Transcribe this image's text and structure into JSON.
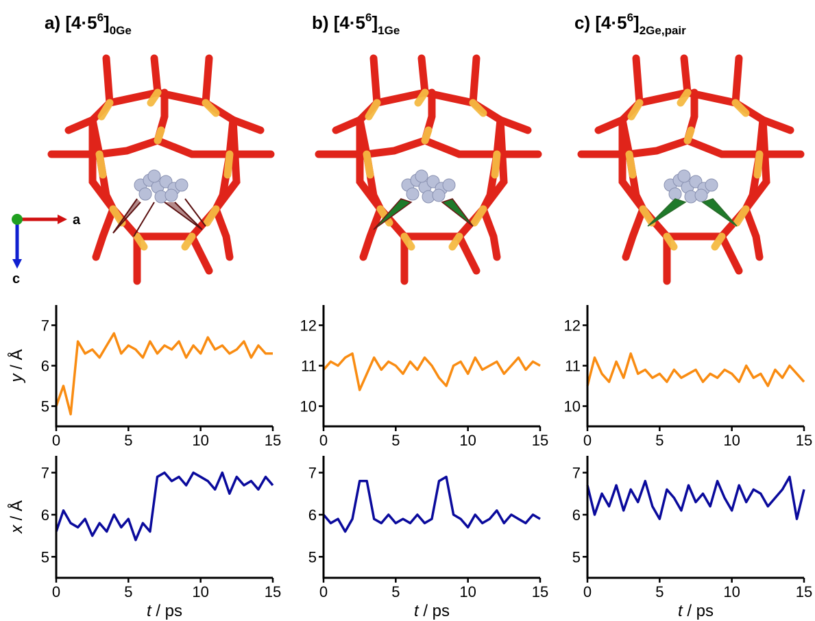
{
  "panels": [
    {
      "label": "a) [4·5",
      "sup": "6",
      "close": "]",
      "sub": "0Ge"
    },
    {
      "label": "b) [4·5",
      "sup": "6",
      "close": "]",
      "sub": "1Ge"
    },
    {
      "label": "c) [4·5",
      "sup": "6",
      "close": "]",
      "sub": "2Ge,pair"
    }
  ],
  "axis_labels": {
    "a": "a",
    "c": "c"
  },
  "chart_data": [
    {
      "type": "line",
      "x": [
        0,
        0.5,
        1,
        1.5,
        2,
        2.5,
        3,
        3.5,
        4,
        4.5,
        5,
        5.5,
        6,
        6.5,
        7,
        7.5,
        8,
        8.5,
        9,
        9.5,
        10,
        10.5,
        11,
        11.5,
        12,
        12.5,
        13,
        13.5,
        14,
        14.5,
        15
      ],
      "series": [
        {
          "color": "#f98c12",
          "values": [
            5.0,
            5.5,
            4.8,
            6.6,
            6.3,
            6.4,
            6.2,
            6.5,
            6.8,
            6.3,
            6.5,
            6.4,
            6.2,
            6.6,
            6.3,
            6.5,
            6.4,
            6.6,
            6.2,
            6.5,
            6.3,
            6.7,
            6.4,
            6.5,
            6.3,
            6.4,
            6.6,
            6.2,
            6.5,
            6.3,
            6.3
          ]
        }
      ],
      "xlim": [
        0,
        15
      ],
      "xticks": [
        0,
        5,
        10,
        15
      ],
      "ylim": [
        4.5,
        7.5
      ],
      "yticks": [
        5,
        6,
        7
      ],
      "ylabel": {
        "var": "y",
        "unit": " / Å"
      }
    },
    {
      "type": "line",
      "x": [
        0,
        0.5,
        1,
        1.5,
        2,
        2.5,
        3,
        3.5,
        4,
        4.5,
        5,
        5.5,
        6,
        6.5,
        7,
        7.5,
        8,
        8.5,
        9,
        9.5,
        10,
        10.5,
        11,
        11.5,
        12,
        12.5,
        13,
        13.5,
        14,
        14.5,
        15
      ],
      "series": [
        {
          "color": "#f98c12",
          "values": [
            10.9,
            11.1,
            11.0,
            11.2,
            11.3,
            10.4,
            10.8,
            11.2,
            10.9,
            11.1,
            11.0,
            10.8,
            11.1,
            10.9,
            11.2,
            11.0,
            10.7,
            10.5,
            11.0,
            11.1,
            10.8,
            11.2,
            10.9,
            11.0,
            11.1,
            10.8,
            11.0,
            11.2,
            10.9,
            11.1,
            11.0
          ]
        }
      ],
      "xlim": [
        0,
        15
      ],
      "xticks": [
        0,
        5,
        10,
        15
      ],
      "ylim": [
        9.5,
        12.5
      ],
      "yticks": [
        10,
        11,
        12
      ]
    },
    {
      "type": "line",
      "x": [
        0,
        0.5,
        1,
        1.5,
        2,
        2.5,
        3,
        3.5,
        4,
        4.5,
        5,
        5.5,
        6,
        6.5,
        7,
        7.5,
        8,
        8.5,
        9,
        9.5,
        10,
        10.5,
        11,
        11.5,
        12,
        12.5,
        13,
        13.5,
        14,
        14.5,
        15
      ],
      "series": [
        {
          "color": "#f98c12",
          "values": [
            10.5,
            11.2,
            10.8,
            10.6,
            11.1,
            10.7,
            11.3,
            10.8,
            10.9,
            10.7,
            10.8,
            10.6,
            10.9,
            10.7,
            10.8,
            10.9,
            10.6,
            10.8,
            10.7,
            10.9,
            10.8,
            10.6,
            11.0,
            10.7,
            10.8,
            10.5,
            10.9,
            10.7,
            11.0,
            10.8,
            10.6
          ]
        }
      ],
      "xlim": [
        0,
        15
      ],
      "xticks": [
        0,
        5,
        10,
        15
      ],
      "ylim": [
        9.5,
        12.5
      ],
      "yticks": [
        10,
        11,
        12
      ]
    },
    {
      "type": "line",
      "x": [
        0,
        0.5,
        1,
        1.5,
        2,
        2.5,
        3,
        3.5,
        4,
        4.5,
        5,
        5.5,
        6,
        6.5,
        7,
        7.5,
        8,
        8.5,
        9,
        9.5,
        10,
        10.5,
        11,
        11.5,
        12,
        12.5,
        13,
        13.5,
        14,
        14.5,
        15
      ],
      "series": [
        {
          "color": "#0a0a9c",
          "values": [
            5.6,
            6.1,
            5.8,
            5.7,
            5.9,
            5.5,
            5.8,
            5.6,
            6.0,
            5.7,
            5.9,
            5.4,
            5.8,
            5.6,
            6.9,
            7.0,
            6.8,
            6.9,
            6.7,
            7.0,
            6.9,
            6.8,
            6.6,
            7.0,
            6.5,
            6.9,
            6.7,
            6.8,
            6.6,
            6.9,
            6.7
          ]
        }
      ],
      "xlim": [
        0,
        15
      ],
      "xticks": [
        0,
        5,
        10,
        15
      ],
      "ylim": [
        4.5,
        7.4
      ],
      "yticks": [
        5,
        6,
        7
      ],
      "ylabel": {
        "var": "x",
        "unit": " / Å"
      },
      "xlabel": {
        "var": "t",
        "unit": " / ps"
      }
    },
    {
      "type": "line",
      "x": [
        0,
        0.5,
        1,
        1.5,
        2,
        2.5,
        3,
        3.5,
        4,
        4.5,
        5,
        5.5,
        6,
        6.5,
        7,
        7.5,
        8,
        8.5,
        9,
        9.5,
        10,
        10.5,
        11,
        11.5,
        12,
        12.5,
        13,
        13.5,
        14,
        14.5,
        15
      ],
      "series": [
        {
          "color": "#0a0a9c",
          "values": [
            6.0,
            5.8,
            5.9,
            5.6,
            5.9,
            6.8,
            6.8,
            5.9,
            5.8,
            6.0,
            5.8,
            5.9,
            5.8,
            6.0,
            5.8,
            5.9,
            6.8,
            6.9,
            6.0,
            5.9,
            5.7,
            6.0,
            5.8,
            5.9,
            6.1,
            5.8,
            6.0,
            5.9,
            5.8,
            6.0,
            5.9
          ]
        }
      ],
      "xlim": [
        0,
        15
      ],
      "xticks": [
        0,
        5,
        10,
        15
      ],
      "ylim": [
        4.5,
        7.4
      ],
      "yticks": [
        5,
        6,
        7
      ],
      "xlabel": {
        "var": "t",
        "unit": " / ps"
      }
    },
    {
      "type": "line",
      "x": [
        0,
        0.5,
        1,
        1.5,
        2,
        2.5,
        3,
        3.5,
        4,
        4.5,
        5,
        5.5,
        6,
        6.5,
        7,
        7.5,
        8,
        8.5,
        9,
        9.5,
        10,
        10.5,
        11,
        11.5,
        12,
        12.5,
        13,
        13.5,
        14,
        14.5,
        15
      ],
      "series": [
        {
          "color": "#0a0a9c",
          "values": [
            6.7,
            6.0,
            6.5,
            6.2,
            6.7,
            6.1,
            6.6,
            6.3,
            6.8,
            6.2,
            5.9,
            6.6,
            6.4,
            6.1,
            6.7,
            6.3,
            6.5,
            6.2,
            6.8,
            6.4,
            6.1,
            6.7,
            6.3,
            6.6,
            6.5,
            6.2,
            6.4,
            6.6,
            6.9,
            5.9,
            6.6
          ]
        }
      ],
      "xlim": [
        0,
        15
      ],
      "xticks": [
        0,
        5,
        10,
        15
      ],
      "ylim": [
        4.5,
        7.4
      ],
      "yticks": [
        5,
        6,
        7
      ],
      "xlabel": {
        "var": "t",
        "unit": " / ps"
      }
    }
  ]
}
